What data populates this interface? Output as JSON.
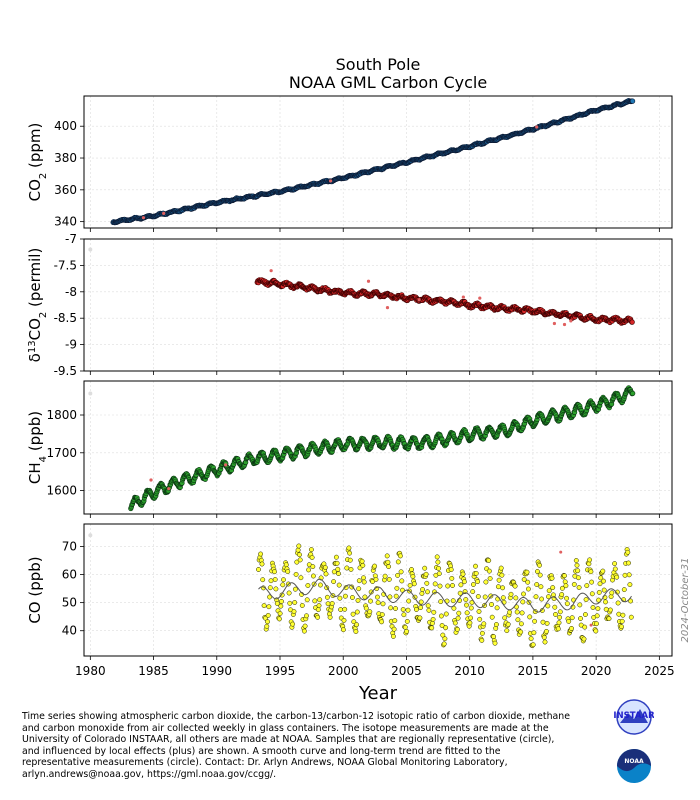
{
  "title": {
    "line1": "South Pole",
    "line2": "NOAA GML Carbon Cycle"
  },
  "date_stamp": "2024-October-31",
  "xlabel": "Year",
  "caption_lines": [
    "Time series showing atmospheric carbon dioxide, the carbon-13/carbon-12 isotopic ratio of carbon dioxide, methane",
    "and carbon monoxide from air collected weekly in glass containers.  The isotope measurements are made at the",
    "University of Colorado INSTAAR, all others are made at NOAA.  Samples that are regionally representative (circle),",
    "and influenced by local effects (plus) are shown. A smooth curve and long-term trend are fitted to the",
    "representative measurements (circle).  Contact:  Dr. Arlyn Andrews, NOAA Global Monitoring Laboratory,",
    "arlyn.andrews@noaa.gov, https://gml.noaa.gov/ccgg/."
  ],
  "logos": {
    "instaar": "INSTAAR",
    "noaa": "NOAA"
  },
  "colors": {
    "co2": "#1f77b4",
    "d13c": "#d62728",
    "ch4": "#2ca02c",
    "co": "#ffff33",
    "outlier": "#e06060",
    "curve": "#555555",
    "grid": "#dddddd"
  },
  "chart_data": [
    {
      "type": "scatter",
      "ylabel": "CO2 (ppm)",
      "xlim": [
        1979.5,
        2026
      ],
      "ylim": [
        336,
        419
      ],
      "yticks": [
        340,
        360,
        380,
        400
      ],
      "x": [
        1981.8,
        1985,
        1990,
        1995,
        2000,
        2005,
        2010,
        2015,
        2020,
        2022.9
      ],
      "y": [
        339.8,
        343.6,
        352.0,
        358.9,
        367.5,
        377.4,
        387.3,
        398.1,
        410.1,
        416.0
      ]
    },
    {
      "type": "scatter",
      "ylabel": "δ13CO2 (permil)",
      "xlim": [
        1979.5,
        2026
      ],
      "ylim": [
        -9.5,
        -7.0
      ],
      "yticks": [
        -9.5,
        -9.0,
        -8.5,
        -8.0,
        -7.5,
        -7.0
      ],
      "x": [
        1993.2,
        1995,
        1998,
        2000,
        2003,
        2005,
        2008,
        2010,
        2013,
        2015,
        2018,
        2020,
        2022.9
      ],
      "y": [
        -7.8,
        -7.85,
        -7.95,
        -8.02,
        -8.05,
        -8.12,
        -8.18,
        -8.25,
        -8.32,
        -8.36,
        -8.45,
        -8.52,
        -8.55
      ]
    },
    {
      "type": "scatter",
      "ylabel": "CH4 (ppb)",
      "xlim": [
        1979.5,
        2026
      ],
      "ylim": [
        1538,
        1890
      ],
      "yticks": [
        1600,
        1700,
        1800
      ],
      "x": [
        1983.2,
        1985,
        1987,
        1990,
        1993,
        1995,
        1998,
        2000,
        2003,
        2006,
        2008,
        2010,
        2013,
        2015,
        2017,
        2019,
        2021,
        2022.9
      ],
      "y": [
        1560,
        1595,
        1623,
        1655,
        1685,
        1694,
        1712,
        1722,
        1727,
        1725,
        1735,
        1748,
        1760,
        1785,
        1800,
        1815,
        1835,
        1862
      ]
    },
    {
      "type": "scatter",
      "ylabel": "CO (ppb)",
      "xlim": [
        1979.5,
        2026
      ],
      "ylim": [
        31,
        78
      ],
      "yticks": [
        40,
        50,
        60,
        70
      ],
      "x": [
        1993.3,
        1995,
        1998,
        2000,
        2003,
        2005,
        2008,
        2010,
        2013,
        2015,
        2018,
        2020,
        2022.8
      ],
      "y": [
        53,
        54,
        56,
        54,
        53,
        52,
        51,
        51,
        50,
        49,
        50,
        52,
        53
      ],
      "seasonal_amplitude": 13
    }
  ]
}
